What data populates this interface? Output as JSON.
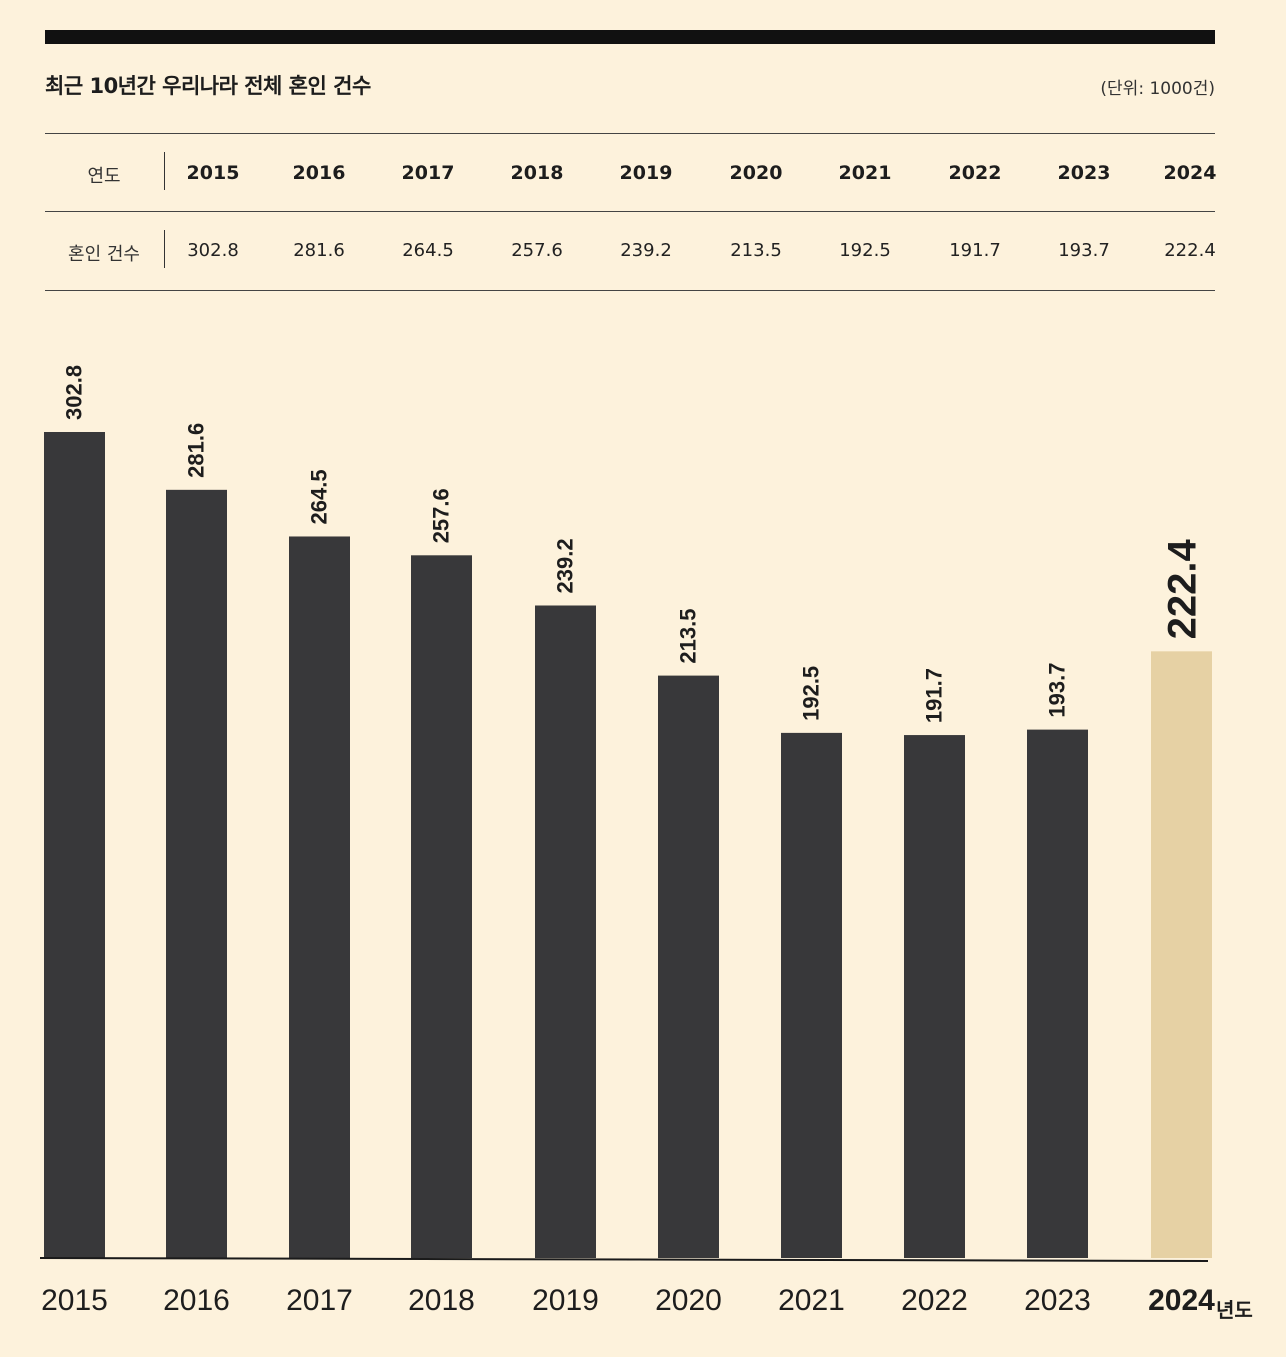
{
  "header": {
    "title": "최근 10년간 우리나라 전체 혼인 건수",
    "unit": "(단위: 1000건)"
  },
  "table": {
    "year_label": "연도",
    "value_label": "혼인 건수",
    "years": [
      "2015",
      "2016",
      "2017",
      "2018",
      "2019",
      "2020",
      "2021",
      "2022",
      "2023",
      "2024"
    ],
    "values": [
      "302.8",
      "281.6",
      "264.5",
      "257.6",
      "239.2",
      "213.5",
      "192.5",
      "191.7",
      "193.7",
      "222.4"
    ]
  },
  "chart_data": {
    "type": "bar",
    "title": "최근 10년간 우리나라 전체 혼인 건수",
    "categories": [
      "2015",
      "2016",
      "2017",
      "2018",
      "2019",
      "2020",
      "2021",
      "2022",
      "2023",
      "2024"
    ],
    "values": [
      302.8,
      281.6,
      264.5,
      257.6,
      239.2,
      213.5,
      192.5,
      191.7,
      193.7,
      222.4
    ],
    "value_labels": [
      "302.8",
      "281.6",
      "264.5",
      "257.6",
      "239.2",
      "213.5",
      "192.5",
      "191.7",
      "193.7",
      "222.4"
    ],
    "ylim": [
      0,
      302.8
    ],
    "ylabel": "",
    "xlabel": "",
    "x_suffix": "년도",
    "highlight_index": 9,
    "colors": {
      "bar": "#38383a",
      "highlight": "#e6d1a4",
      "axis": "#1a1a1a",
      "text": "#1d1d1d"
    }
  }
}
